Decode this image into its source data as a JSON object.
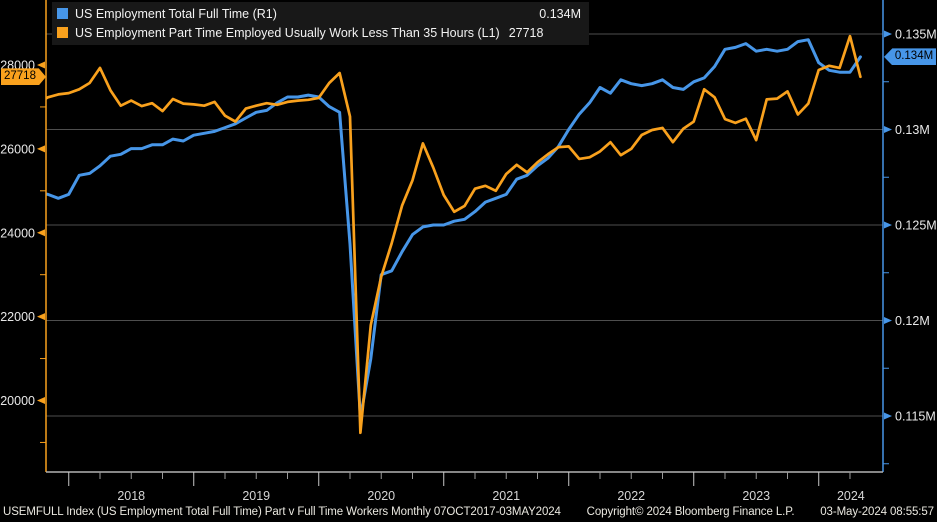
{
  "colors": {
    "background": "#000000",
    "full_time_blue": "#4796e8",
    "part_time_orange": "#f9a11d",
    "gridline": "#4e4e4e",
    "x_axis": "#b3b3b3",
    "tick_label": "#e8e8e8",
    "year_label": "#d6d6d6",
    "legend_bg": "#181818"
  },
  "legend": {
    "rows": [
      {
        "series": "full_time",
        "label": "US Employment Total Full Time (R1)",
        "value": "0.134M",
        "color": "#4796e8"
      },
      {
        "series": "part_time",
        "label": "US Employment Part Time Employed Usually Work Less Than 35 Hours  (L1)",
        "value": "27718",
        "color": "#f9a11d"
      }
    ]
  },
  "axis_tags": {
    "left": {
      "text": "27718",
      "color": "#f9a11d",
      "value": 27718
    },
    "right": {
      "text": "0.134M",
      "color": "#4796e8",
      "value": 0.1338
    }
  },
  "status_bar": {
    "left": "USEMFULL Index (US Employment Total Full Time) Part v Full Time Workers  Monthly 07OCT2017-03MAY2024",
    "center": "Copyright© 2024 Bloomberg Finance L.P.",
    "right": "03-May-2024 08:55:57"
  },
  "chart_data": {
    "type": "line",
    "freq": "monthly",
    "start": "2017-10",
    "end": "2024-05",
    "grid": "horizontal-right-axis-major",
    "legend_position": "top-left",
    "x_axis": {
      "years": [
        "2018",
        "2019",
        "2020",
        "2021",
        "2022",
        "2023",
        "2024"
      ],
      "months_total": 80
    },
    "left_axis": {
      "ticks": [
        {
          "label": "28000",
          "value": 28000
        },
        {
          "label": "26000",
          "value": 26000
        },
        {
          "label": "24000",
          "value": 24000
        },
        {
          "label": "22000",
          "value": 22000
        },
        {
          "label": "20000",
          "value": 20000
        }
      ],
      "minor_ticks": [
        27000,
        25000,
        23000,
        21000,
        19000
      ],
      "range": [
        18800,
        29200
      ],
      "color": "#f9a11d"
    },
    "right_axis": {
      "ticks": [
        {
          "label": "0.135M",
          "value": 0.135
        },
        {
          "label": "0.13M",
          "value": 0.13
        },
        {
          "label": "0.125M",
          "value": 0.125
        },
        {
          "label": "0.12M",
          "value": 0.12
        },
        {
          "label": "0.115M",
          "value": 0.115
        }
      ],
      "minor_ticks": [
        0.1325,
        0.1275,
        0.1225,
        0.1175,
        0.1125
      ],
      "range": [
        0.1132,
        0.1368
      ],
      "color": "#4796e8"
    },
    "series": [
      {
        "name": "US Employment Part Time Employed Usually Work Less Than 35 Hours",
        "axis": "L1",
        "color": "#f9a11d",
        "last_value": 27718,
        "values": [
          27080,
          27230,
          27300,
          27330,
          27420,
          27570,
          27930,
          27400,
          27030,
          27150,
          27020,
          27090,
          26900,
          27190,
          27080,
          27060,
          27030,
          27120,
          26790,
          26650,
          26960,
          27030,
          27090,
          27050,
          27120,
          27150,
          27170,
          27215,
          27570,
          27810,
          26770,
          19230,
          21800,
          22950,
          23750,
          24650,
          25250,
          26130,
          25550,
          24900,
          24500,
          24640,
          25050,
          25120,
          25000,
          25400,
          25620,
          25440,
          25680,
          25870,
          26040,
          26060,
          25760,
          25800,
          25940,
          26160,
          25850,
          26000,
          26330,
          26450,
          26500,
          26160,
          26480,
          26650,
          27420,
          27230,
          26710,
          26620,
          26720,
          26210,
          27180,
          27200,
          27370,
          26820,
          27080,
          27880,
          27980,
          27930,
          28690,
          27718
        ]
      },
      {
        "name": "US Employment Total Full Time",
        "axis": "R1",
        "color": "#4796e8",
        "last_value": 0.1338,
        "values": [
          0.1267,
          0.1266,
          0.1264,
          0.1266,
          0.1276,
          0.1277,
          0.1281,
          0.1286,
          0.1287,
          0.129,
          0.129,
          0.1292,
          0.1292,
          0.1295,
          0.1294,
          0.1297,
          0.1298,
          0.1299,
          0.1301,
          0.1303,
          0.1306,
          0.1309,
          0.131,
          0.1314,
          0.1317,
          0.1317,
          0.1318,
          0.1317,
          0.1312,
          0.1309,
          0.124,
          0.1149,
          0.118,
          0.1224,
          0.1226,
          0.1236,
          0.1245,
          0.1249,
          0.125,
          0.125,
          0.1252,
          0.1253,
          0.1257,
          0.1262,
          0.1264,
          0.1266,
          0.1274,
          0.1276,
          0.1281,
          0.1285,
          0.1291,
          0.13,
          0.1308,
          0.1314,
          0.1322,
          0.1319,
          0.1326,
          0.1324,
          0.1323,
          0.1324,
          0.1326,
          0.1322,
          0.1321,
          0.1325,
          0.1327,
          0.1333,
          0.1342,
          0.1343,
          0.1345,
          0.1341,
          0.1342,
          0.1341,
          0.1342,
          0.1346,
          0.1347,
          0.1335,
          0.1331,
          0.133,
          0.133,
          0.1338
        ]
      }
    ]
  }
}
